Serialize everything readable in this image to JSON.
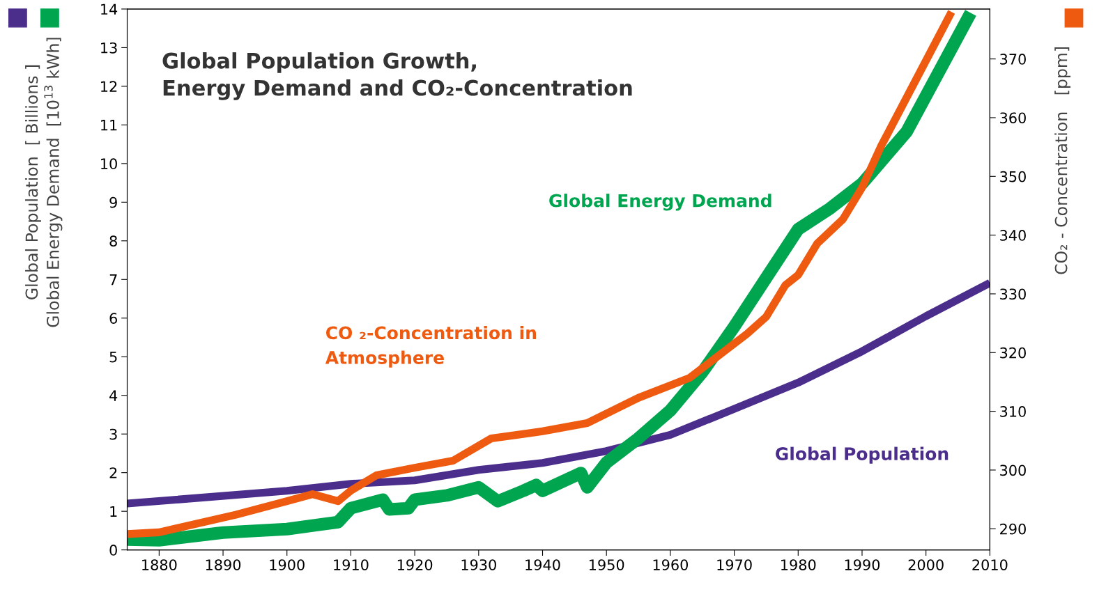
{
  "chart_data": {
    "type": "line",
    "title": "Global Population Growth,\nEnergy Demand and CO₂-Concentration",
    "ylabel": "Global Population  [ Billions ]\nGlobal Energy Demand  [10$^{13}$ kWh]",
    "y2label": "CO₂ - Concentration   [ppm]",
    "xlim": [
      1875,
      2010
    ],
    "xticks": [
      1880,
      1890,
      1900,
      1910,
      1920,
      1930,
      1940,
      1950,
      1960,
      1970,
      1980,
      1990,
      2000,
      2010
    ],
    "ylim": [
      0,
      14
    ],
    "yticks": [
      0,
      1,
      2,
      3,
      4,
      5,
      6,
      7,
      8,
      9,
      10,
      11,
      12,
      13,
      14
    ],
    "y2lim": [
      286.4,
      378.5
    ],
    "y2ticks": [
      290,
      300,
      310,
      320,
      330,
      340,
      350,
      360,
      370
    ],
    "grid": false,
    "legend": false,
    "marker": "none",
    "line_style": "solid",
    "series": [
      {
        "name": "Global Population",
        "color": "#4b2e8c",
        "x": [
          1875,
          1900,
          1910,
          1920,
          1930,
          1940,
          1950,
          1960,
          1970,
          1980,
          1990,
          2000,
          2010
        ],
        "values": [
          1.2,
          1.53,
          1.71,
          1.8,
          2.07,
          2.25,
          2.56,
          2.98,
          3.65,
          4.33,
          5.14,
          6.05,
          6.91
        ]
      },
      {
        "name": "Global Energy Demand",
        "color": "#00a550",
        "x": [
          1875,
          1880,
          1890,
          1900,
          1908,
          1910,
          1915,
          1916,
          1919,
          1920,
          1925,
          1930,
          1933,
          1937,
          1939,
          1940,
          1946,
          1947,
          1950,
          1955,
          1960,
          1965,
          1970,
          1975,
          1980,
          1985,
          1990,
          1997,
          2007
        ],
        "values": [
          0.27,
          0.25,
          0.45,
          0.54,
          0.72,
          1.08,
          1.3,
          1.05,
          1.08,
          1.3,
          1.41,
          1.62,
          1.26,
          1.53,
          1.68,
          1.53,
          1.99,
          1.62,
          2.26,
          2.89,
          3.61,
          4.6,
          5.78,
          7.04,
          8.3,
          8.84,
          9.48,
          10.83,
          13.9
        ]
      },
      {
        "name": "CO ₂-Concentration in\nAtmosphere",
        "color": "#ee5a0f",
        "axis": "y2",
        "x": [
          1875,
          1880,
          1892,
          1900,
          1904,
          1908,
          1910,
          1914,
          1920,
          1926,
          1932,
          1940,
          1947,
          1955,
          1963,
          1972,
          1975,
          1978,
          1980,
          1983,
          1987,
          1990,
          1993,
          2004
        ],
        "values": [
          289.1,
          289.4,
          292.4,
          294.7,
          295.9,
          294.7,
          296.5,
          299.1,
          300.4,
          301.6,
          305.4,
          306.6,
          308,
          312.3,
          315.7,
          323.2,
          326.1,
          331.5,
          333.2,
          338.6,
          342.7,
          348.1,
          355.2,
          378
        ]
      }
    ]
  }
}
